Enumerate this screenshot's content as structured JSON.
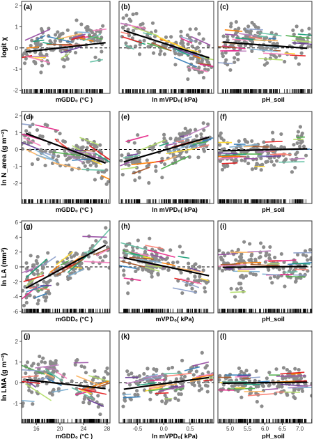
{
  "chart_data": {
    "type": "scatter",
    "layout": "4 rows x 3 columns of panels",
    "row_ylabels": [
      "logit χ",
      "ln N_area (g m⁻²)",
      "ln LA (mm²)",
      "ln LMA (g m⁻²)"
    ],
    "column_xlabels": [
      [
        "mGDD₀ (°C )",
        "ln mVPD₀( kPa)",
        "pH_soil"
      ],
      [
        "mGDD₀ (°C )",
        "ln mVPD₀( kPa)",
        "pH_soil"
      ],
      [
        "mGDD₀ (°C )",
        "mVPD₀( kPa)",
        "pH_soil"
      ],
      [
        "mGDD₀ (°C )",
        "ln mVPD₀( kPa)",
        "pH_soil"
      ]
    ],
    "x_ticks": [
      [
        "16",
        "20",
        "24",
        "28"
      ],
      [
        "-0.5",
        "0.0",
        "0.5"
      ],
      [
        "5.0",
        "5.5",
        "6.0",
        "6.5",
        "7.0"
      ]
    ],
    "x_ranges": [
      [
        13.5,
        28.5
      ],
      [
        -0.85,
        0.95
      ],
      [
        4.65,
        7.35
      ]
    ],
    "y_ticks": [
      [
        "-2",
        "-1",
        "0",
        "1",
        "2"
      ],
      [
        "-2",
        "-1",
        "0",
        "1",
        "2"
      ],
      [
        "-6",
        "-4",
        "-2",
        "0",
        "2",
        "4",
        "6"
      ],
      [
        "-1",
        "0",
        "1",
        "2"
      ]
    ],
    "y_ranges": [
      [
        -2.15,
        2.2
      ],
      [
        -3.2,
        2.25
      ],
      [
        -6.2,
        6.2
      ],
      [
        -1.95,
        2.5
      ]
    ],
    "reference_line": {
      "y": 0,
      "style": "dashed"
    },
    "panels": [
      {
        "label": "(a)",
        "row": 0,
        "col": 0,
        "overall_slope": 0.032,
        "overall_intercept": -0.64
      },
      {
        "label": "(b)",
        "row": 0,
        "col": 1,
        "overall_slope": -0.8,
        "overall_intercept": 0.22
      },
      {
        "label": "(c)",
        "row": 0,
        "col": 2,
        "overall_slope": -0.12,
        "overall_intercept": 0.85
      },
      {
        "label": "(d)",
        "row": 1,
        "col": 0,
        "overall_slope": -0.13,
        "overall_intercept": 2.8
      },
      {
        "label": "(e)",
        "row": 1,
        "col": 1,
        "overall_slope": 0.9,
        "overall_intercept": -0.05
      },
      {
        "label": "(f)",
        "row": 1,
        "col": 2,
        "overall_slope": 0.05,
        "overall_intercept": -0.32
      },
      {
        "label": "(g)",
        "row": 2,
        "col": 0,
        "overall_slope": 0.43,
        "overall_intercept": -9.0
      },
      {
        "label": "(h)",
        "row": 2,
        "col": 1,
        "overall_slope": -1.5,
        "overall_intercept": 0.1
      },
      {
        "label": "(i)",
        "row": 2,
        "col": 2,
        "overall_slope": 0.05,
        "overall_intercept": -0.3
      },
      {
        "label": "(j)",
        "row": 3,
        "col": 0,
        "overall_slope": -0.032,
        "overall_intercept": 0.6
      },
      {
        "label": "(k)",
        "row": 3,
        "col": 1,
        "overall_slope": 0.35,
        "overall_intercept": -0.05
      },
      {
        "label": "(l)",
        "row": 3,
        "col": 2,
        "overall_slope": 0.02,
        "overall_intercept": -0.12
      }
    ],
    "series_colors": [
      "#e41a1c",
      "#377eb8",
      "#4daf4a",
      "#984ea3",
      "#ff7f00",
      "#ffd92f",
      "#a65628",
      "#f781bf",
      "#1b9e77",
      "#66c2a5",
      "#8da0cb",
      "#e7298a",
      "#b3de69",
      "#fdb462",
      "#80b1d3",
      "#bc80bd",
      "#fb8072",
      "#6a3d9a"
    ],
    "point_color": "#8c8c8c",
    "overall_line_color": "#000000",
    "group_lines_per_panel": 28
  }
}
